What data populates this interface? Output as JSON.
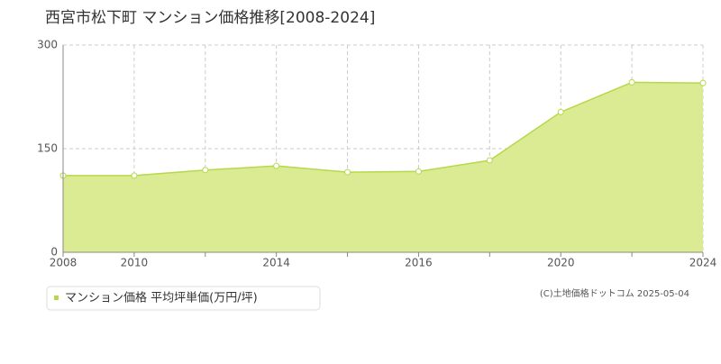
{
  "chart_data": {
    "type": "area",
    "title": "西宮市松下町 マンション価格推移[2008-2024]",
    "categories": [
      "2008",
      "2010",
      null,
      "2014",
      null,
      "2016",
      null,
      "2020",
      null,
      "2024"
    ],
    "series": [
      {
        "name": "マンション価格 平均坪単価(万円/坪)",
        "color": "#b5d94a",
        "values": [
          111,
          111,
          119,
          125,
          116,
          117,
          133,
          203,
          246,
          245
        ]
      }
    ],
    "ylim": [
      0,
      300
    ],
    "yticks": [
      0,
      150,
      300
    ],
    "grid": true,
    "source": "(C)土地価格ドットコム 2025-05-04"
  }
}
